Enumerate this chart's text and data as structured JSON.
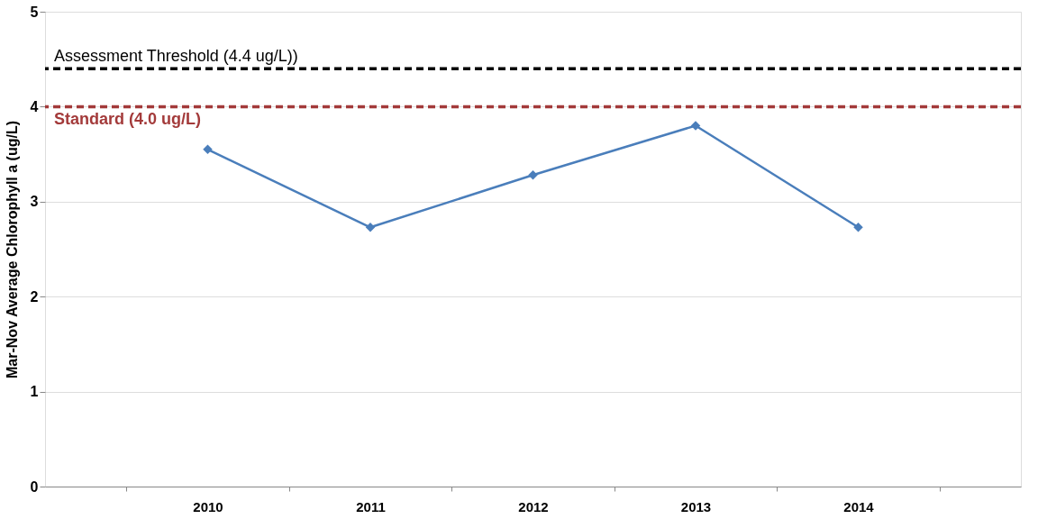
{
  "chart_data": {
    "type": "line",
    "ylabel": "Mar-Nov Average Chlorophyll a (ug/L)",
    "categories": [
      "2010",
      "2011",
      "2012",
      "2013",
      "2014"
    ],
    "series": [
      {
        "color": "#4a7ebb",
        "values": [
          3.55,
          2.73,
          3.28,
          3.8,
          2.73
        ]
      }
    ],
    "ylim": [
      0,
      5
    ],
    "yticks": [
      0,
      1,
      2,
      3,
      4,
      5
    ],
    "grid": "y",
    "marker": "diamond",
    "line_style": "solid",
    "ref_lines": [
      {
        "axis": "y",
        "value": 4.4,
        "label": "Assessment Threshold (4.4 ug/L))",
        "color": "#000000",
        "line_style": "dashed"
      },
      {
        "axis": "y",
        "value": 4.0,
        "label": "Standard (4.0 ug/L)",
        "color": "#a33a3a",
        "line_style": "dashed"
      }
    ]
  }
}
